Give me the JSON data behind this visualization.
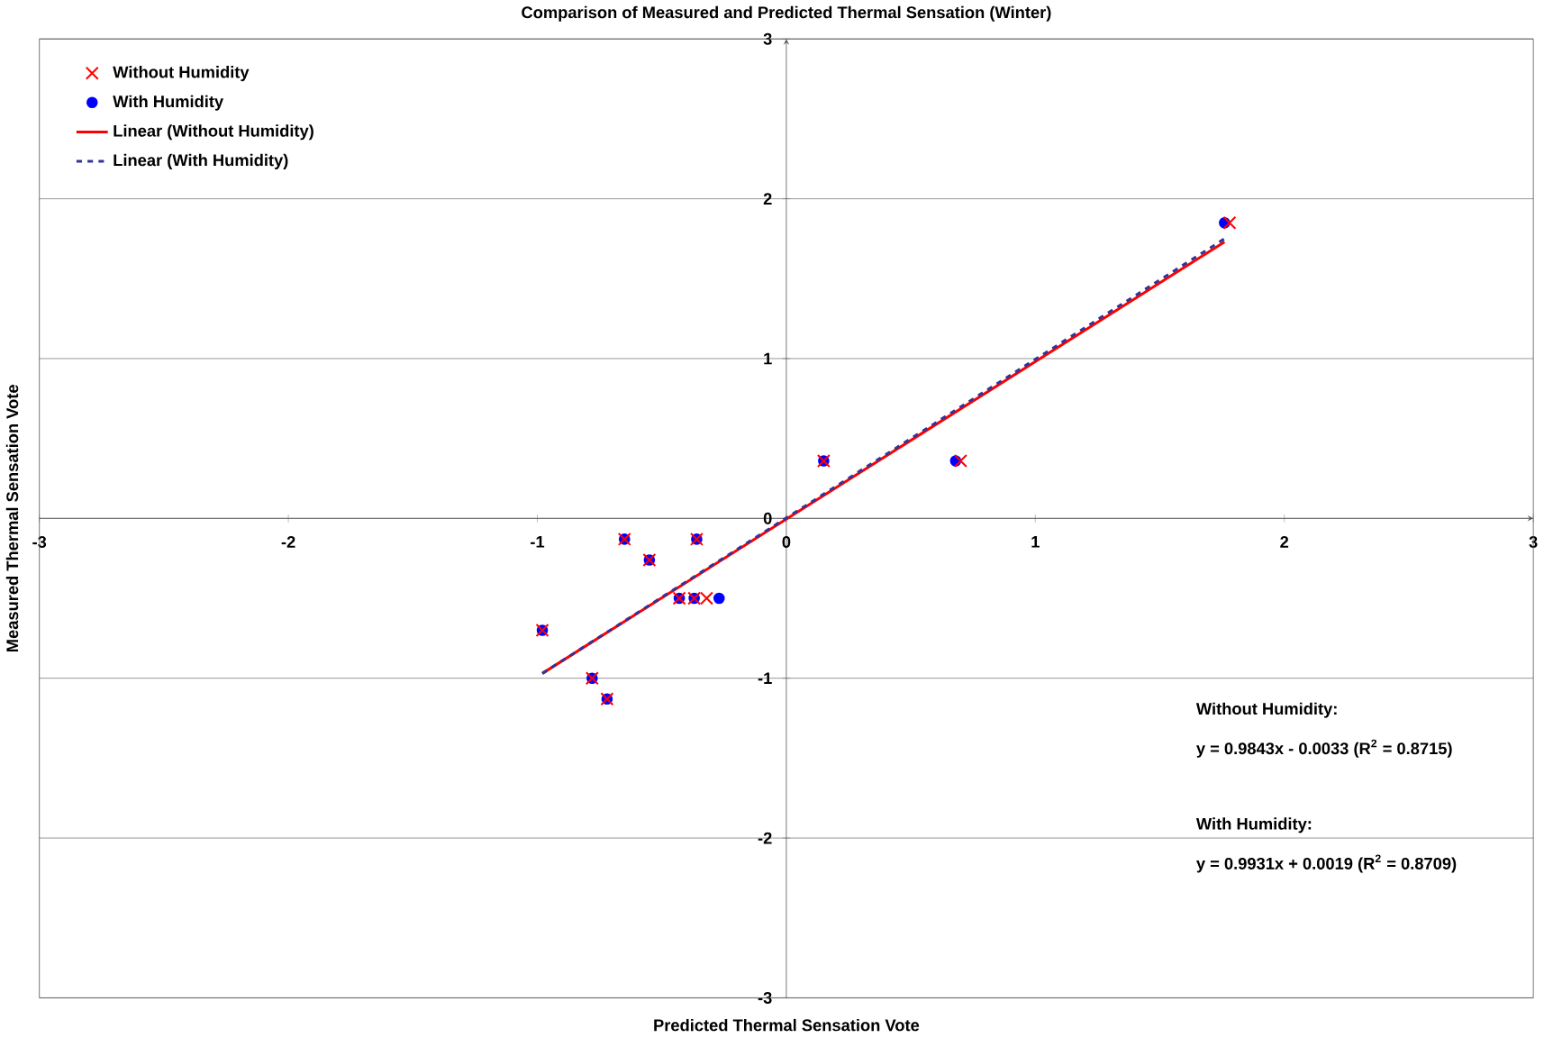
{
  "chart_data": {
    "type": "scatter",
    "title": "Comparison of Measured and Predicted Thermal Sensation (Winter)",
    "xlabel": "Predicted Thermal Sensation Vote",
    "ylabel": "Measured Thermal Sensation Vote",
    "xlim": [
      -3,
      3
    ],
    "ylim": [
      -3,
      3
    ],
    "xticks": [
      -3,
      -2,
      -1,
      0,
      1,
      2,
      3
    ],
    "yticks": [
      -3,
      -2,
      -1,
      0,
      1,
      2,
      3
    ],
    "grid": "y",
    "legend": "top left",
    "series": [
      {
        "name": "Without Humidity",
        "type": "scatter",
        "marker": "cross",
        "color": "#ff0000",
        "x": [
          -0.98,
          -0.78,
          -0.72,
          -0.65,
          -0.55,
          -0.36,
          -0.43,
          -0.37,
          -0.32,
          0.15,
          0.7,
          1.78
        ],
        "values": [
          -0.7,
          -1.0,
          -1.13,
          -0.13,
          -0.26,
          -0.13,
          -0.5,
          -0.5,
          -0.5,
          0.36,
          0.36,
          1.85
        ]
      },
      {
        "name": "With Humidity",
        "marker": "circle",
        "color": "#0000ff",
        "x": [
          -0.98,
          -0.78,
          -0.72,
          -0.65,
          -0.55,
          -0.36,
          -0.43,
          -0.37,
          -0.27,
          0.15,
          0.68,
          1.76
        ],
        "values": [
          -0.7,
          -1.0,
          -1.13,
          -0.13,
          -0.26,
          -0.13,
          -0.5,
          -0.5,
          -0.5,
          0.36,
          0.36,
          1.85
        ]
      },
      {
        "name": "Linear (Without Humidity)",
        "type": "line",
        "line_style": "solid",
        "color": "#ff0000",
        "x": [
          -0.98,
          1.76
        ],
        "values": [
          -0.97,
          1.73
        ]
      },
      {
        "name": "Linear (With Humidity)",
        "type": "line",
        "line_style": "dashed",
        "color": "#333399",
        "x": [
          -0.98,
          1.76
        ],
        "values": [
          -0.97,
          1.75
        ]
      }
    ],
    "annotations": [
      "Without Humidity:",
      "y = 0.9843x - 0.0033 (R$^{2}$ = 0.8715)",
      "With Humidity:",
      "y = 0.9931x + 0.0019 (R$^{2}$ = 0.8709)"
    ]
  }
}
